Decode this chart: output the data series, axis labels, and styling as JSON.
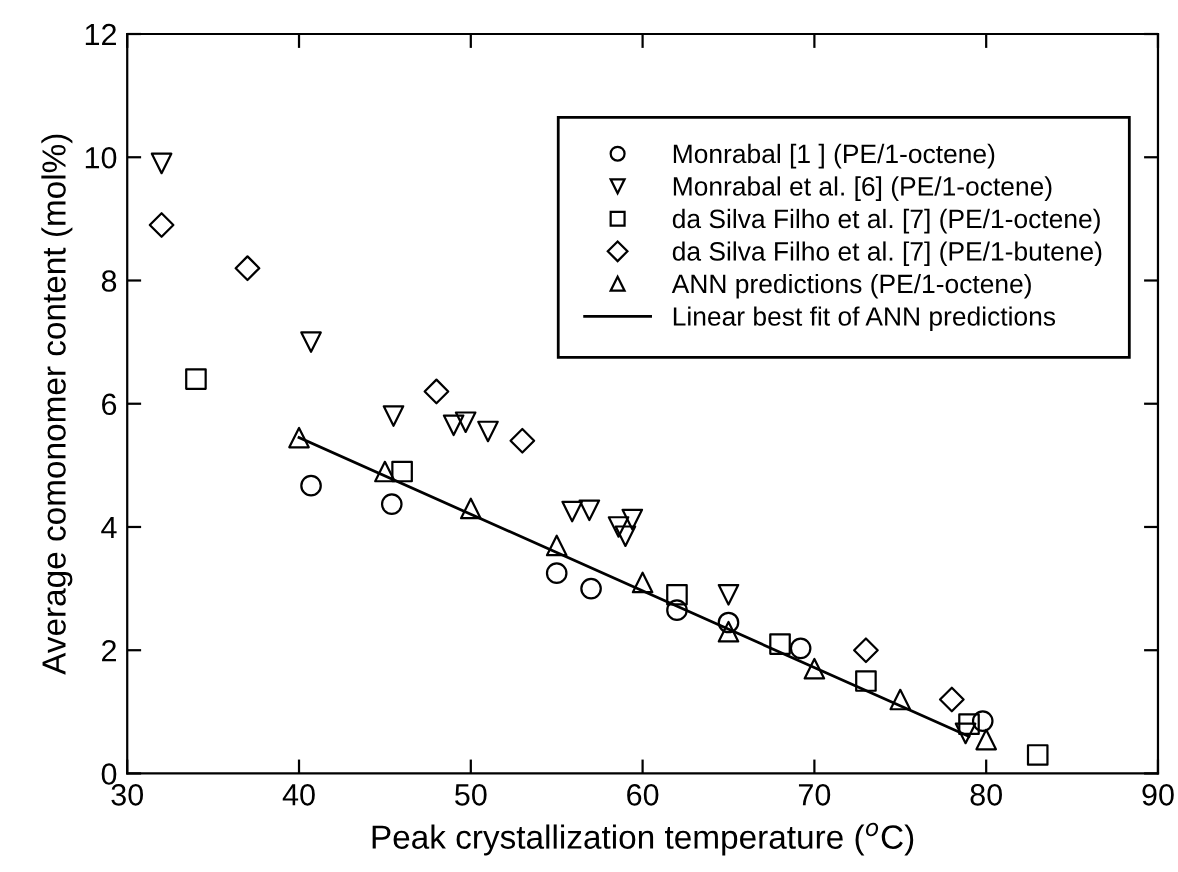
{
  "chart_data": {
    "type": "scatter",
    "xlabel": "Peak crystallization temperature ($^{o}$C)",
    "ylabel": "Average comonomer content (mol%)",
    "xlim": [
      30,
      90
    ],
    "ylim": [
      0,
      12
    ],
    "xticks": [
      30,
      40,
      50,
      60,
      70,
      80,
      90
    ],
    "yticks": [
      0,
      2,
      4,
      6,
      8,
      10,
      12
    ],
    "grid": false,
    "legend": "top right",
    "series": [
      {
        "name": "Monrabal [1 ] (PE/1-octene)",
        "color": "#000000",
        "marker": "circle",
        "x": [
          40.7,
          45.4,
          55,
          57,
          62,
          65,
          69.2,
          79.8
        ],
        "values": [
          4.67,
          4.37,
          3.25,
          3.0,
          2.65,
          2.45,
          2.03,
          0.85
        ]
      },
      {
        "name": "Monrabal et al. [6] (PE/1-octene)",
        "color": "#000000",
        "marker": "triangle_down",
        "x": [
          32,
          40.7,
          45.5,
          49,
          49.7,
          51,
          55.9,
          56.9,
          58.6,
          59.4,
          59.0,
          65,
          78.8
        ],
        "values": [
          9.9,
          7.0,
          5.8,
          5.65,
          5.7,
          5.55,
          4.25,
          4.27,
          4.0,
          4.12,
          3.85,
          2.9,
          0.65
        ]
      },
      {
        "name": "da Silva Filho et al. [7] (PE/1-octene)",
        "color": "#000000",
        "marker": "square",
        "x": [
          34,
          46,
          62,
          68,
          73,
          79,
          83
        ],
        "values": [
          6.4,
          4.9,
          2.9,
          2.1,
          1.5,
          0.8,
          0.3
        ]
      },
      {
        "name": "da Silva Filho et al. [7] (PE/1-butene)",
        "color": "#000000",
        "marker": "diamond",
        "x": [
          32,
          37,
          48,
          53,
          73,
          78
        ],
        "values": [
          8.9,
          8.2,
          6.2,
          5.4,
          2.0,
          1.2
        ]
      },
      {
        "name": "ANN predictions (PE/1-octene)",
        "color": "#000000",
        "marker": "triangle",
        "x": [
          40,
          45,
          50,
          55,
          60,
          65,
          70,
          75,
          80
        ],
        "values": [
          5.45,
          4.9,
          4.3,
          3.7,
          3.1,
          2.3,
          1.7,
          1.2,
          0.55
        ]
      },
      {
        "name": "Linear best fit of ANN predictions",
        "type": "line",
        "color": "#000000",
        "marker": "none",
        "line_style": "solid",
        "x": [
          40,
          79
        ],
        "values": [
          5.45,
          0.6
        ]
      }
    ]
  }
}
